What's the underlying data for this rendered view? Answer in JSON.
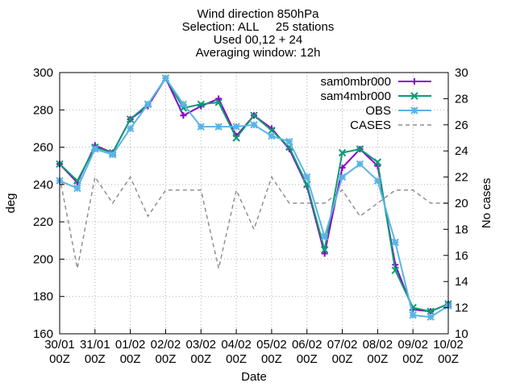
{
  "chart_data": {
    "type": "line",
    "title_lines": [
      "Wind direction 850hPa",
      "Selection: ALL     25 stations",
      "Used 00,12 + 24",
      "Averaging window: 12h"
    ],
    "xlabel": "Date",
    "ylabel": "deg",
    "y2label": "No cases",
    "ylim": [
      160,
      300
    ],
    "y2lim": [
      10,
      30
    ],
    "yticks": [
      "160",
      "180",
      "200",
      "220",
      "240",
      "260",
      "280",
      "300"
    ],
    "y2ticks": [
      "10",
      "12",
      "14",
      "16",
      "18",
      "20",
      "22",
      "24",
      "26",
      "28",
      "30"
    ],
    "xticks": [
      {
        "day": "30/01",
        "hour": "00Z"
      },
      {
        "day": "31/01",
        "hour": "00Z"
      },
      {
        "day": "01/02",
        "hour": "00Z"
      },
      {
        "day": "02/02",
        "hour": "00Z"
      },
      {
        "day": "03/02",
        "hour": "00Z"
      },
      {
        "day": "04/02",
        "hour": "00Z"
      },
      {
        "day": "05/02",
        "hour": "00Z"
      },
      {
        "day": "06/02",
        "hour": "00Z"
      },
      {
        "day": "07/02",
        "hour": "00Z"
      },
      {
        "day": "08/02",
        "hour": "00Z"
      },
      {
        "day": "09/02",
        "hour": "00Z"
      },
      {
        "day": "10/02",
        "hour": "00Z"
      }
    ],
    "x_step_hours": 12,
    "grid": true,
    "legend_position": "top-right",
    "series": [
      {
        "name": "sam0mbr000",
        "color": "#8b00c8",
        "marker": "plus",
        "axis": "y",
        "values": [
          251,
          241,
          261,
          257,
          275,
          282,
          297,
          277,
          282,
          286,
          266,
          277,
          270,
          259,
          239,
          203,
          249,
          259,
          250,
          197,
          173,
          172,
          176
        ]
      },
      {
        "name": "sam4mbr000",
        "color": "#0d9a72",
        "marker": "cross",
        "axis": "y",
        "values": [
          251,
          242,
          260,
          257,
          275,
          283,
          297,
          281,
          283,
          284,
          265,
          277,
          269,
          260,
          240,
          205,
          257,
          259,
          252,
          194,
          174,
          172,
          176
        ]
      },
      {
        "name": "OBS",
        "color": "#5ab4e5",
        "marker": "star",
        "axis": "y",
        "values": [
          242,
          238,
          259,
          256,
          270,
          283,
          297,
          283,
          271,
          271,
          271,
          272,
          266,
          263,
          244,
          212,
          244,
          251,
          242,
          209,
          170,
          169,
          175
        ]
      },
      {
        "name": "CASES",
        "color": "#909090",
        "marker": "none",
        "dashed": true,
        "axis": "y2",
        "values": [
          22,
          15,
          22,
          20,
          22,
          19,
          21,
          21,
          21,
          15,
          21,
          18,
          22,
          20,
          20,
          20,
          21,
          19,
          20,
          21,
          21,
          20,
          20
        ]
      }
    ]
  }
}
